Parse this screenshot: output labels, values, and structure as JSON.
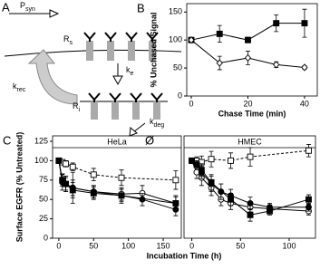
{
  "diagram": {
    "panel": "A",
    "synthesis": {
      "main": "P",
      "sub": "syn"
    },
    "surface": {
      "main": "R",
      "sub": "s"
    },
    "endocytosis": {
      "main": "k",
      "sub": "e"
    },
    "recycling": {
      "main": "k",
      "sub": "rec"
    },
    "internal": {
      "main": "R",
      "sub": "i"
    },
    "degradation": {
      "main": "k",
      "sub": "deg"
    },
    "sink": "Ø"
  },
  "chart_data": [
    {
      "type": "line",
      "panel": "B",
      "xlabel": "Chase Time (min)",
      "ylabel": "% Unchased Signal",
      "xlim": [
        -1.6,
        44.5
      ],
      "xticks": [
        0,
        20,
        40
      ],
      "ylim": [
        0,
        165
      ],
      "yticks": [
        0,
        50,
        100,
        150
      ],
      "series": [
        {
          "color": "#000000",
          "marker": "square",
          "filled": true,
          "dash": false,
          "x": [
            0,
            10,
            20,
            30,
            40
          ],
          "values": [
            100,
            111,
            100,
            130,
            130
          ],
          "errors": [
            0,
            15,
            5,
            15,
            25
          ]
        },
        {
          "color": "#000000",
          "marker": "diamond",
          "filled": false,
          "dash": false,
          "x": [
            0,
            10,
            20,
            30,
            40
          ],
          "values": [
            100,
            59,
            68,
            56,
            51
          ],
          "errors": [
            0,
            12,
            12,
            5,
            3
          ]
        }
      ]
    },
    {
      "type": "line",
      "panel": "C",
      "title": "HeLa",
      "xlabel": "Incubation Time (h)",
      "ylabel": "Surface EGFR (% Untreated)",
      "xlim": [
        -9,
        176
      ],
      "xticks": [
        0,
        50,
        100,
        150
      ],
      "ylim": [
        0,
        132
      ],
      "yticks": [
        0,
        25,
        50,
        75,
        100,
        125
      ],
      "series": [
        {
          "color": "#000000",
          "marker": "square",
          "filled": false,
          "dash": true,
          "x": [
            0,
            5,
            10,
            20,
            50,
            90,
            168
          ],
          "values": [
            100,
            98,
            96,
            92,
            82,
            78,
            75
          ],
          "errors": [
            0,
            3,
            4,
            5,
            8,
            10,
            12
          ]
        },
        {
          "color": "#000000",
          "marker": "circle",
          "filled": false,
          "dash": false,
          "x": [
            0,
            5,
            10,
            20,
            50,
            90,
            120,
            168
          ],
          "values": [
            100,
            75,
            70,
            65,
            60,
            57,
            58,
            45
          ],
          "errors": [
            0,
            8,
            10,
            10,
            8,
            8,
            10,
            10
          ]
        },
        {
          "color": "#000000",
          "marker": "circle",
          "filled": true,
          "dash": false,
          "x": [
            0,
            5,
            10,
            20,
            50,
            90,
            120,
            168
          ],
          "values": [
            100,
            72,
            70,
            65,
            60,
            55,
            50,
            37
          ],
          "errors": [
            0,
            10,
            10,
            20,
            8,
            10,
            8,
            8
          ]
        },
        {
          "color": "#000000",
          "marker": "square",
          "filled": true,
          "dash": false,
          "x": [
            0,
            5,
            10,
            20,
            50,
            90,
            168
          ],
          "values": [
            100,
            75,
            70,
            62,
            58,
            55,
            45
          ],
          "errors": [
            0,
            8,
            8,
            10,
            8,
            8,
            8
          ]
        }
      ]
    },
    {
      "type": "line",
      "title": "HMEC",
      "xlim": [
        -8,
        127
      ],
      "xticks": [
        0,
        50,
        100
      ],
      "ylim": [
        0,
        132
      ],
      "series": [
        {
          "color": "#000000",
          "marker": "square",
          "filled": false,
          "dash": true,
          "x": [
            0,
            5,
            10,
            20,
            40,
            60,
            120
          ],
          "values": [
            100,
            100,
            98,
            102,
            100,
            105,
            113
          ],
          "errors": [
            0,
            5,
            8,
            10,
            10,
            12,
            8
          ]
        },
        {
          "color": "#000000",
          "marker": "circle",
          "filled": false,
          "dash": false,
          "x": [
            0,
            5,
            10,
            20,
            30,
            40,
            60,
            80,
            120
          ],
          "values": [
            100,
            85,
            78,
            65,
            50,
            45,
            40,
            38,
            35
          ],
          "errors": [
            0,
            8,
            10,
            10,
            8,
            8,
            6,
            5,
            5
          ]
        },
        {
          "color": "#000000",
          "marker": "circle",
          "filled": true,
          "dash": false,
          "x": [
            0,
            5,
            10,
            20,
            30,
            40,
            60,
            80,
            120
          ],
          "values": [
            100,
            95,
            85,
            70,
            60,
            55,
            45,
            40,
            40
          ],
          "errors": [
            0,
            5,
            8,
            10,
            10,
            8,
            8,
            5,
            5
          ]
        },
        {
          "color": "#000000",
          "marker": "square",
          "filled": true,
          "dash": false,
          "x": [
            0,
            5,
            10,
            20,
            40,
            60,
            80,
            120
          ],
          "values": [
            100,
            95,
            88,
            72,
            50,
            30,
            35,
            50
          ],
          "errors": [
            0,
            5,
            8,
            10,
            8,
            8,
            5,
            6
          ]
        }
      ]
    }
  ]
}
